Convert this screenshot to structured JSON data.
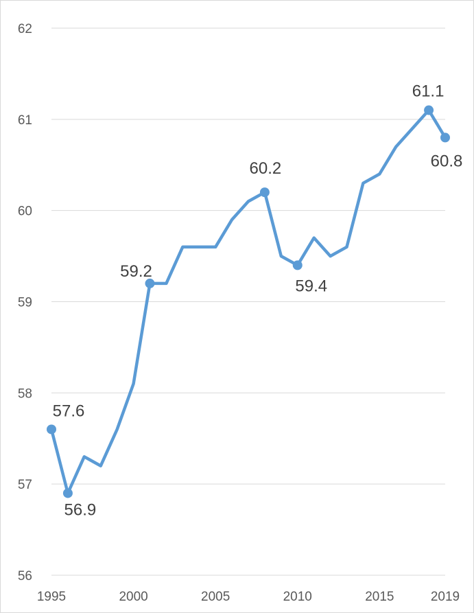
{
  "chart_data": {
    "type": "line",
    "title": "",
    "xlabel": "",
    "ylabel": "",
    "xlim": [
      1995,
      2019
    ],
    "ylim": [
      56,
      62
    ],
    "x_ticks": [
      1995,
      2000,
      2005,
      2010,
      2015,
      2019
    ],
    "y_ticks": [
      56,
      57,
      58,
      59,
      60,
      61,
      62
    ],
    "grid": "horizontal",
    "legend": "none",
    "line_color": "#5b9bd5",
    "series": [
      {
        "x": [
          1995,
          1996,
          1997,
          1998,
          1999,
          2000,
          2001,
          2002,
          2003,
          2004,
          2005,
          2006,
          2007,
          2008,
          2009,
          2010,
          2011,
          2012,
          2013,
          2014,
          2015,
          2016,
          2017,
          2018,
          2019
        ],
        "values": [
          57.6,
          56.9,
          57.3,
          57.2,
          57.6,
          58.1,
          59.2,
          59.2,
          59.6,
          59.6,
          59.6,
          59.9,
          60.1,
          60.2,
          59.5,
          59.4,
          59.7,
          59.5,
          59.6,
          60.3,
          60.4,
          60.7,
          60.9,
          61.1,
          60.8
        ]
      }
    ],
    "data_labels": [
      {
        "x": 1995,
        "value": 57.6,
        "text": "57.6"
      },
      {
        "x": 1996,
        "value": 56.9,
        "text": "56.9"
      },
      {
        "x": 2001,
        "value": 59.2,
        "text": "59.2"
      },
      {
        "x": 2008,
        "value": 60.2,
        "text": "60.2"
      },
      {
        "x": 2010,
        "value": 59.4,
        "text": "59.4"
      },
      {
        "x": 2018,
        "value": 61.1,
        "text": "61.1"
      },
      {
        "x": 2019,
        "value": 60.8,
        "text": "60.8"
      }
    ]
  }
}
